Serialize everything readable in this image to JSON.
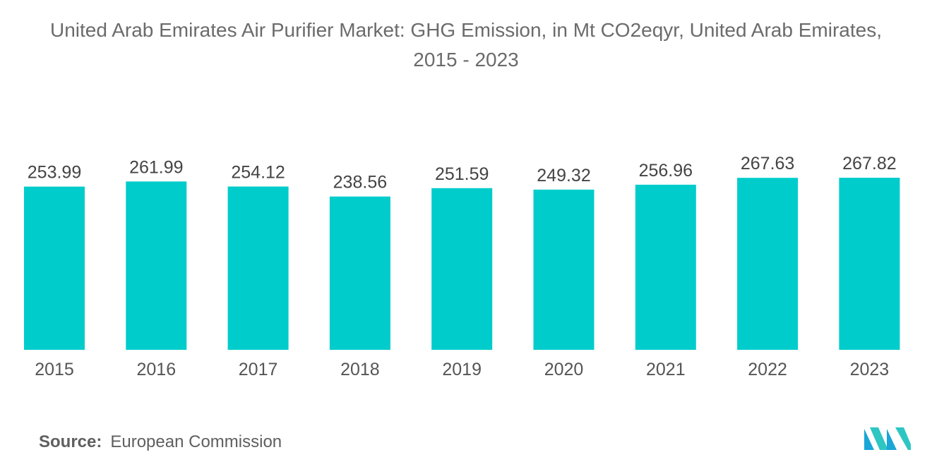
{
  "chart_data": {
    "type": "bar",
    "title": "United Arab Emirates Air Purifier Market: GHG Emission, in Mt CO2eqyr, United Arab Emirates, 2015 - 2023",
    "categories": [
      "2015",
      "2016",
      "2017",
      "2018",
      "2019",
      "2020",
      "2021",
      "2022",
      "2023"
    ],
    "values": [
      253.99,
      261.99,
      254.12,
      238.56,
      251.59,
      249.32,
      256.96,
      267.63,
      267.82
    ],
    "value_labels": [
      "253.99",
      "261.99",
      "254.12",
      "238.56",
      "251.59",
      "249.32",
      "256.96",
      "267.63",
      "267.82"
    ],
    "xlabel": "",
    "ylabel": "",
    "ylim": [
      0,
      267.82
    ],
    "grid": false,
    "bar_color": "#00cccc"
  },
  "source": {
    "label": "Source:",
    "value": "European Commission"
  },
  "logo": {
    "icon": "mordor-intelligence-logo-icon",
    "colors": [
      "#1aa6d6",
      "#2ec6c2",
      "#1f4f8f"
    ]
  }
}
